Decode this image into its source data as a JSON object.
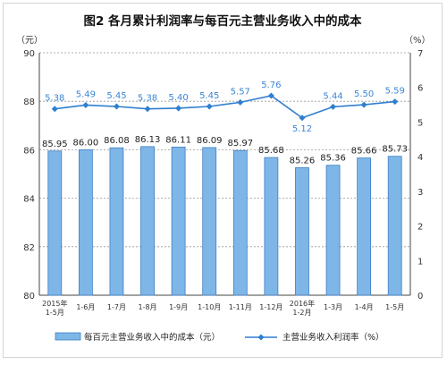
{
  "chart_data": {
    "type": "bar+line",
    "title": "图2  各月累计利润率与每百元主营业务收入中的成本",
    "categories": [
      [
        "2015年",
        "1-5月"
      ],
      [
        "1-6月"
      ],
      [
        "1-7月"
      ],
      [
        "1-8月"
      ],
      [
        "1-9月"
      ],
      [
        "1-10月"
      ],
      [
        "1-11月"
      ],
      [
        "1-12月"
      ],
      [
        "2016年",
        "1-2月"
      ],
      [
        "1-3月"
      ],
      [
        "1-4月"
      ],
      [
        "1-5月"
      ]
    ],
    "left_axis": {
      "unit": "（元）",
      "min": 80,
      "max": 90,
      "ticks": [
        80,
        82,
        84,
        86,
        88,
        90
      ]
    },
    "right_axis": {
      "unit": "（%）",
      "min": 0,
      "max": 7,
      "ticks": [
        0,
        1,
        2,
        3,
        4,
        5,
        6,
        7
      ]
    },
    "series": [
      {
        "name": "每百元主营业务收入中的成本（元）",
        "type": "bar",
        "axis": "left",
        "values": [
          85.95,
          86.0,
          86.08,
          86.13,
          86.11,
          86.09,
          85.97,
          85.68,
          85.26,
          85.36,
          85.66,
          85.73
        ],
        "labels": [
          "85.95",
          "86.00",
          "86.08",
          "86.13",
          "86.11",
          "86.09",
          "85.97",
          "85.68",
          "85.26",
          "85.36",
          "85.66",
          "85.73"
        ]
      },
      {
        "name": "主营业务收入利润率（%）",
        "type": "line",
        "axis": "right",
        "values": [
          5.38,
          5.49,
          5.45,
          5.38,
          5.4,
          5.45,
          5.57,
          5.76,
          5.12,
          5.44,
          5.5,
          5.59
        ],
        "labels": [
          "5.38",
          "5.49",
          "5.45",
          "5.38",
          "5.40",
          "5.45",
          "5.57",
          "5.76",
          "5.12",
          "5.44",
          "5.50",
          "5.59"
        ]
      }
    ],
    "colors": {
      "bar_fill": "#7fb6e8",
      "bar_edge": "#3d7fc1",
      "line": "#2f7fd0",
      "grid": "#999999"
    },
    "grid": "horizontal dotted",
    "legend_position": "bottom"
  }
}
